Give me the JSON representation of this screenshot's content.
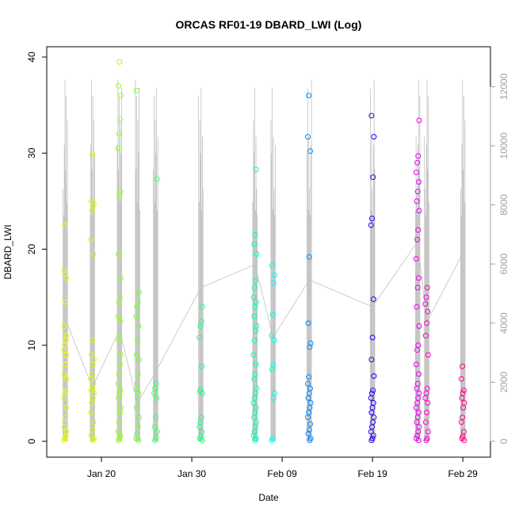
{
  "chart_data": {
    "type": "scatter",
    "title": "ORCAS RF01-19 DBARD_LWI (Log)",
    "xlabel": "Date",
    "ylabel": "DBARD_LWI",
    "x_ticks": [
      "Jan 20",
      "Jan 30",
      "Feb 09",
      "Feb 19",
      "Feb 29"
    ],
    "x_tick_dates": [
      "2016-01-20",
      "2016-01-30",
      "2016-02-09",
      "2016-02-19",
      "2016-02-29"
    ],
    "xlim": [
      "2016-01-15",
      "2016-03-02"
    ],
    "ylim": [
      0,
      40
    ],
    "y_ticks": [
      0,
      10,
      20,
      30,
      40
    ],
    "y2_ticks": [
      0,
      2000,
      4000,
      6000,
      8000,
      10000,
      12000
    ],
    "y2lim": [
      0,
      13000
    ],
    "grid": false,
    "marker": "open-circle",
    "colors": {
      "altitude_line": "#c0c0c0",
      "right_axis": "#a0a0a0",
      "frame": "#000000"
    },
    "series": [
      {
        "date": "2016-01-16",
        "color": "#eeff00",
        "values": [
          0.1,
          0.3,
          0.5,
          1,
          1.5,
          2.5,
          3.5,
          4.5,
          5,
          5.2,
          6.5,
          7,
          8,
          9,
          9.5,
          10,
          10.5,
          11,
          12,
          14.5,
          17,
          17.8,
          22.5
        ]
      },
      {
        "date": "2016-01-19",
        "color": "#ccff00",
        "values": [
          0.1,
          0.3,
          0.6,
          1.2,
          2,
          3,
          4,
          4.5,
          5,
          5.3,
          5.6,
          6,
          6.5,
          7,
          8,
          8.5,
          9,
          10.5,
          19.5,
          21,
          24,
          24.5,
          24.8,
          25,
          29.8
        ]
      },
      {
        "date": "2016-01-22",
        "color": "#99ff22",
        "values": [
          0.1,
          0.3,
          0.6,
          1,
          2,
          3,
          3.5,
          4.5,
          5,
          5.3,
          6,
          7,
          8,
          9,
          10.5,
          11,
          12.5,
          13,
          14.5,
          15,
          17,
          19.5,
          25.5,
          26,
          30.5,
          32,
          33.5,
          36,
          37,
          39.5
        ]
      },
      {
        "date": "2016-01-24",
        "color": "#77ff44",
        "values": [
          0.1,
          0.3,
          0.8,
          1.5,
          2.5,
          3.5,
          4.5,
          5,
          5.4,
          6,
          7,
          8.5,
          9,
          10.5,
          12,
          13,
          14,
          14.5,
          15.5,
          36.5
        ]
      },
      {
        "date": "2016-01-26",
        "color": "#44ff66",
        "values": [
          0.1,
          0.4,
          1,
          1.5,
          2.5,
          4.5,
          5,
          5.5,
          6,
          27.3
        ]
      },
      {
        "date": "2016-01-31",
        "color": "#22ff88",
        "values": [
          0.1,
          0.3,
          0.5,
          1,
          1.5,
          2,
          2.5,
          5,
          5.2,
          5.4,
          7.8,
          10.8,
          12,
          12.5,
          14
        ]
      },
      {
        "date": "2016-02-06",
        "color": "#00ffbb",
        "values": [
          0.1,
          0.3,
          0.6,
          1,
          1.5,
          2,
          2.5,
          3,
          3.5,
          4,
          4.5,
          5,
          5.5,
          6.5,
          7,
          8,
          9,
          10.5,
          11.5,
          12,
          13,
          14,
          14.5,
          15,
          16,
          16.7,
          19.5,
          20.5,
          21.5,
          28.3
        ]
      },
      {
        "date": "2016-02-08",
        "color": "#00ffee",
        "values": [
          0.1,
          0.3,
          4.5,
          5,
          7.5,
          8,
          10.5,
          11,
          13.2,
          16.5,
          17.3,
          18.3
        ]
      },
      {
        "date": "2016-02-12",
        "color": "#0088ff",
        "values": [
          0.1,
          0.3,
          0.8,
          1.2,
          1.8,
          2.5,
          3,
          3.5,
          4,
          4.5,
          5,
          5.5,
          6,
          6.7,
          9.8,
          10.2,
          12.3,
          19.2,
          30.2,
          31.7,
          36
        ]
      },
      {
        "date": "2016-02-19",
        "color": "#2200ff",
        "values": [
          0.1,
          0.3,
          0.6,
          1,
          1.5,
          2,
          2.5,
          3,
          3.5,
          4,
          4.5,
          5,
          5.3,
          6.8,
          8.5,
          10.8,
          14.8,
          22.5,
          23.2,
          27.5,
          31.7,
          33.9
        ]
      },
      {
        "date": "2016-02-24",
        "color": "#ee00ee",
        "values": [
          0.1,
          0.3,
          0.6,
          1,
          1.5,
          2,
          2.5,
          3,
          3.5,
          4,
          4.5,
          5,
          5.5,
          6,
          7,
          8,
          9.5,
          10,
          12,
          14,
          16,
          17,
          19,
          21,
          22,
          24,
          25,
          26,
          27,
          28,
          29,
          29.7,
          33.4
        ]
      },
      {
        "date": "2016-02-25",
        "color": "#ff00cc",
        "values": [
          0.1,
          0.3,
          1,
          2,
          3,
          4,
          4.5,
          5,
          5.5,
          9,
          11,
          12.3,
          13.5,
          14.3,
          15,
          16
        ]
      },
      {
        "date": "2016-02-29",
        "color": "#ff0088",
        "values": [
          0.1,
          0.3,
          0.5,
          1,
          2,
          2.5,
          3.5,
          4,
          4.5,
          5,
          5.3,
          6.5,
          7.8
        ]
      }
    ]
  }
}
